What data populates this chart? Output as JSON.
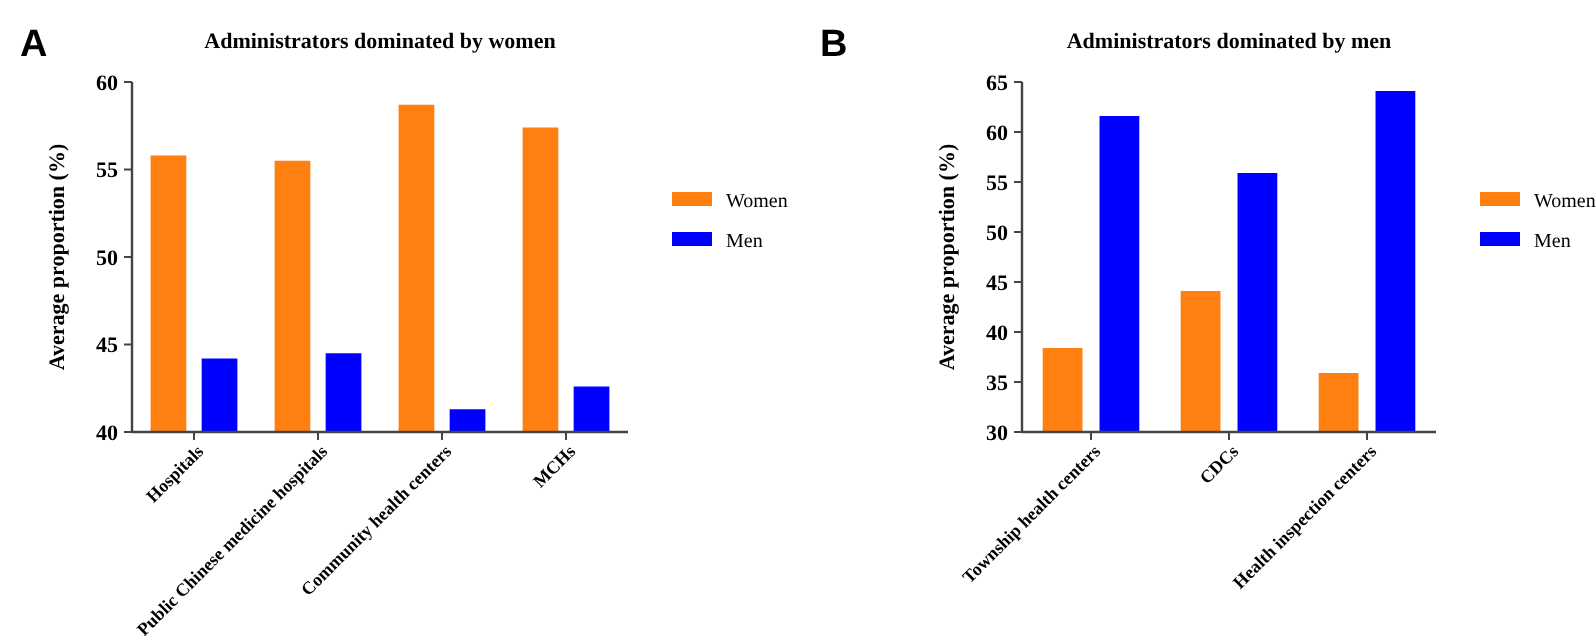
{
  "chart_data": [
    {
      "type": "bar",
      "title": "Administrators dominated by women",
      "ylabel": "Average proportion (%)",
      "annotations": [
        "A"
      ],
      "categories": [
        "Hospitals",
        "Public Chinese medicine hospitals",
        "Community health centers",
        "MCHs"
      ],
      "series": [
        {
          "name": "Women",
          "color": "#ff8010",
          "values": [
            55.8,
            55.5,
            58.7,
            57.4
          ]
        },
        {
          "name": "Men",
          "color": "#0000ff",
          "values": [
            44.2,
            44.5,
            41.3,
            42.6
          ]
        }
      ],
      "ylim": [
        40,
        60
      ],
      "yticks": [
        40,
        45,
        50,
        55,
        60
      ],
      "grid": false,
      "legend": "right"
    },
    {
      "type": "bar",
      "title": "Administrators dominated by men",
      "ylabel": "Average proportion (%)",
      "annotations": [
        "B"
      ],
      "categories": [
        "Township health centers",
        "CDCs",
        "Health inspection centers"
      ],
      "series": [
        {
          "name": "Women",
          "color": "#ff8010",
          "values": [
            38.4,
            44.1,
            35.9
          ]
        },
        {
          "name": "Men",
          "color": "#0000ff",
          "values": [
            61.6,
            55.9,
            64.1
          ]
        }
      ],
      "ylim": [
        30,
        65
      ],
      "yticks": [
        30,
        35,
        40,
        45,
        50,
        55,
        60,
        65
      ],
      "grid": false,
      "legend": "right"
    }
  ]
}
